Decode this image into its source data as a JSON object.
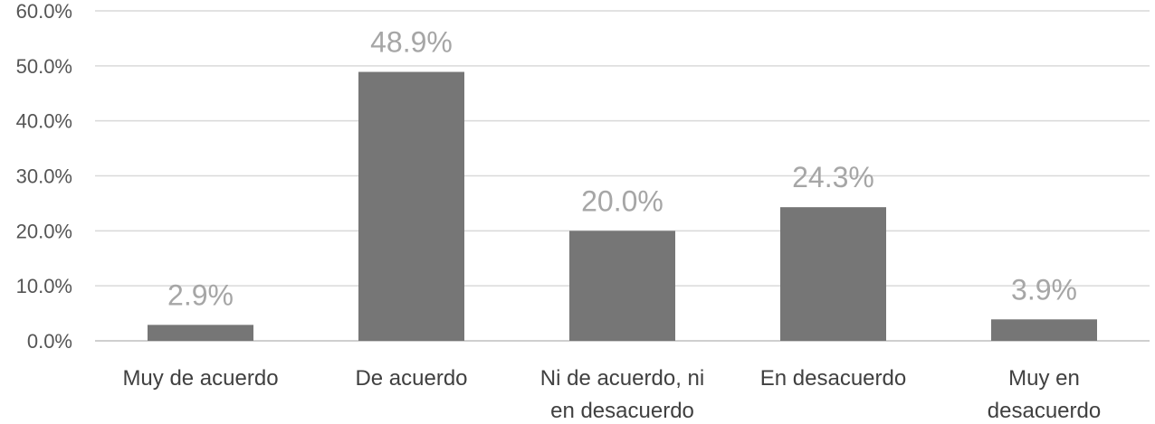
{
  "chart_data": {
    "type": "bar",
    "title": "",
    "xlabel": "",
    "ylabel": "",
    "categories": [
      [
        "Muy de acuerdo"
      ],
      [
        "De acuerdo"
      ],
      [
        "Ni de acuerdo, ni",
        "en desacuerdo"
      ],
      [
        "En desacuerdo"
      ],
      [
        "Muy en",
        "desacuerdo"
      ]
    ],
    "values": [
      2.9,
      48.9,
      20.0,
      24.3,
      3.9
    ],
    "data_labels": [
      "2.9%",
      "48.9%",
      "20.0%",
      "24.3%",
      "3.9%"
    ],
    "yticks": [
      "0.0%",
      "10.0%",
      "20.0%",
      "30.0%",
      "40.0%",
      "50.0%",
      "60.0%"
    ],
    "ylim": [
      0,
      60
    ],
    "grid": true,
    "legend": "none",
    "colors": {
      "bar": "#767676",
      "data_label": "#a6a6a6",
      "grid": "#d9d9d9"
    }
  }
}
